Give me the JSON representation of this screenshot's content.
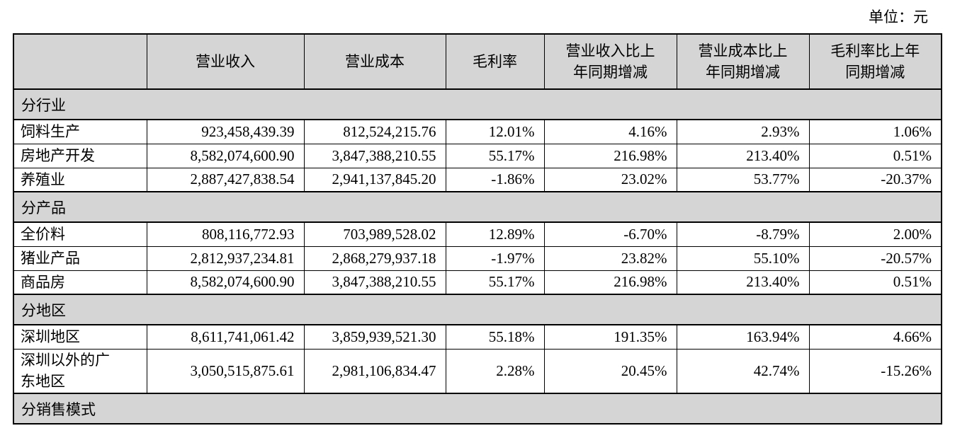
{
  "meta": {
    "unit_label": "单位：元"
  },
  "colors": {
    "section_bg": "#d5d5d5",
    "border": "#000000",
    "text": "#000000",
    "page_bg": "#ffffff"
  },
  "table": {
    "columns": [
      "",
      "营业收入",
      "营业成本",
      "毛利率",
      "营业收入比上\n年同期增减",
      "营业成本比上\n年同期增减",
      "毛利率比上年\n同期增减"
    ],
    "sections": [
      {
        "title": "分行业",
        "rows": [
          {
            "label": "饲料生产",
            "values": [
              "923,458,439.39",
              "812,524,215.76",
              "12.01%",
              "4.16%",
              "2.93%",
              "1.06%"
            ]
          },
          {
            "label": "房地产开发",
            "values": [
              "8,582,074,600.90",
              "3,847,388,210.55",
              "55.17%",
              "216.98%",
              "213.40%",
              "0.51%"
            ]
          },
          {
            "label": "养殖业",
            "values": [
              "2,887,427,838.54",
              "2,941,137,845.20",
              "-1.86%",
              "23.02%",
              "53.77%",
              "-20.37%"
            ]
          }
        ]
      },
      {
        "title": "分产品",
        "rows": [
          {
            "label": "全价料",
            "values": [
              "808,116,772.93",
              "703,989,528.02",
              "12.89%",
              "-6.70%",
              "-8.79%",
              "2.00%"
            ]
          },
          {
            "label": "猪业产品",
            "values": [
              "2,812,937,234.81",
              "2,868,279,937.18",
              "-1.97%",
              "23.82%",
              "55.10%",
              "-20.57%"
            ]
          },
          {
            "label": "商品房",
            "values": [
              "8,582,074,600.90",
              "3,847,388,210.55",
              "55.17%",
              "216.98%",
              "213.40%",
              "0.51%"
            ]
          }
        ]
      },
      {
        "title": "分地区",
        "rows": [
          {
            "label": "深圳地区",
            "values": [
              "8,611,741,061.42",
              "3,859,939,521.30",
              "55.18%",
              "191.35%",
              "163.94%",
              "4.66%"
            ]
          },
          {
            "label": "深圳以外的广\n东地区",
            "values": [
              "3,050,515,875.61",
              "2,981,106,834.47",
              "2.28%",
              "20.45%",
              "42.74%",
              "-15.26%"
            ]
          }
        ]
      },
      {
        "title": "分销售模式",
        "rows": []
      }
    ]
  }
}
